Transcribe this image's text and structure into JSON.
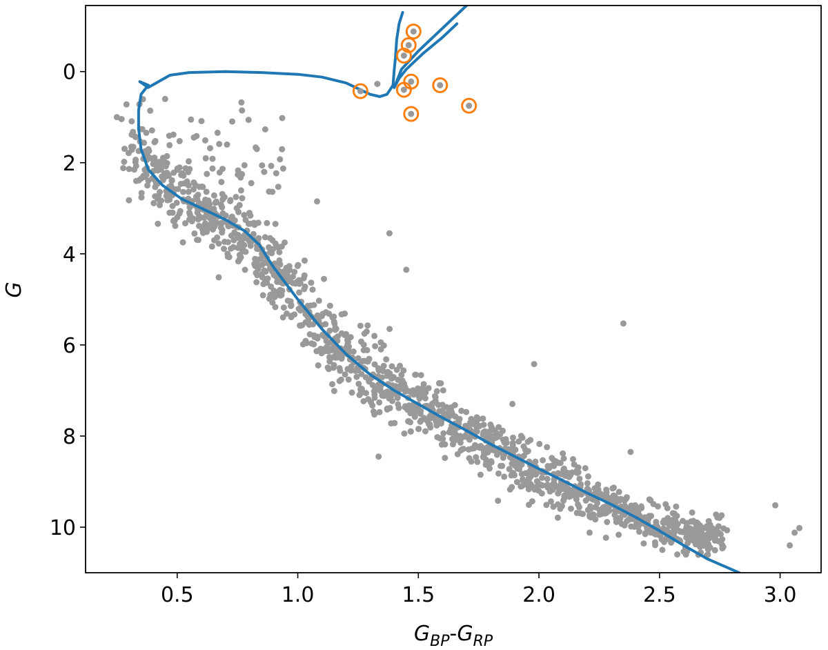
{
  "chart_data": {
    "type": "scatter",
    "title": "",
    "xlabel": "G_BP-G_RP",
    "xlabel_parts": {
      "main": "G",
      "sub1": "BP",
      "dash": "-",
      "main2": "G",
      "sub2": "RP"
    },
    "ylabel": "G",
    "xlim": [
      0.12,
      3.17
    ],
    "ylim": [
      11.0,
      -1.45
    ],
    "y_inverted": true,
    "grid": false,
    "x_ticks": [
      0.5,
      1.0,
      1.5,
      2.0,
      2.5,
      3.0
    ],
    "x_tick_labels": [
      "0.5",
      "1.0",
      "1.5",
      "2.0",
      "2.5",
      "3.0"
    ],
    "y_ticks": [
      0,
      2,
      4,
      6,
      8,
      10
    ],
    "y_tick_labels": [
      "0",
      "2",
      "4",
      "6",
      "8",
      "10"
    ],
    "colors": {
      "stars": "#999999",
      "isochrone": "#1f77b4",
      "highlight": "#ff7f0e"
    },
    "ridge": {
      "x": [
        0.3,
        0.4,
        0.5,
        0.6,
        0.7,
        0.8,
        0.9,
        1.0,
        1.1,
        1.2,
        1.3,
        1.4,
        1.5,
        1.6,
        1.7,
        1.8,
        1.9,
        2.0,
        2.1,
        2.2,
        2.3,
        2.4,
        2.5,
        2.6,
        2.7
      ],
      "y": [
        1.5,
        2.3,
        2.75,
        3.15,
        3.5,
        3.85,
        4.4,
        5.15,
        5.8,
        6.3,
        6.75,
        7.1,
        7.45,
        7.75,
        8.05,
        8.35,
        8.6,
        8.85,
        9.1,
        9.35,
        9.6,
        9.85,
        10.05,
        10.2,
        10.3
      ]
    },
    "series": [
      {
        "values": [
          {
            "x": 0.25,
            "y": 1.0
          },
          {
            "x": 0.28,
            "y": 1.98
          },
          {
            "x": 0.33,
            "y": 2.4
          },
          {
            "x": 1.33,
            "y": 0.27
          },
          {
            "x": 1.45,
            "y": 4.35
          },
          {
            "x": 1.61,
            "y": 8.48
          },
          {
            "x": 1.83,
            "y": 9.42
          },
          {
            "x": 1.98,
            "y": 6.42
          },
          {
            "x": 2.21,
            "y": 10.12
          },
          {
            "x": 2.35,
            "y": 5.53
          },
          {
            "x": 2.38,
            "y": 8.35
          },
          {
            "x": 3.06,
            "y": 10.12
          },
          {
            "x": 3.08,
            "y": 10.02
          },
          {
            "x": 3.04,
            "y": 10.4
          },
          {
            "x": 2.98,
            "y": 9.52
          },
          {
            "x": 1.08,
            "y": 2.85
          },
          {
            "x": 0.83,
            "y": 1.7
          },
          {
            "x": 1.38,
            "y": 3.55
          }
        ]
      },
      {
        "values": [
          {
            "x": 1.26,
            "y": 0.43
          },
          {
            "x": 1.44,
            "y": 0.4
          },
          {
            "x": 1.47,
            "y": 0.22
          },
          {
            "x": 1.59,
            "y": 0.3
          },
          {
            "x": 1.71,
            "y": 0.75
          },
          {
            "x": 1.47,
            "y": 0.93
          },
          {
            "x": 1.44,
            "y": -0.35
          },
          {
            "x": 1.46,
            "y": -0.58
          },
          {
            "x": 1.48,
            "y": -0.88
          }
        ]
      },
      {
        "values": [
          {
            "x": 1.435,
            "y": -1.3
          },
          {
            "x": 1.42,
            "y": -1.05
          },
          {
            "x": 1.41,
            "y": -0.7
          },
          {
            "x": 1.405,
            "y": -0.3
          },
          {
            "x": 1.4,
            "y": -0.05
          },
          {
            "x": 1.395,
            "y": 0.3
          },
          {
            "x": 1.37,
            "y": 0.5
          },
          {
            "x": 1.34,
            "y": 0.55
          },
          {
            "x": 1.3,
            "y": 0.5
          },
          {
            "x": 1.2,
            "y": 0.25
          },
          {
            "x": 1.1,
            "y": 0.12
          },
          {
            "x": 1.0,
            "y": 0.06
          },
          {
            "x": 0.85,
            "y": 0.02
          },
          {
            "x": 0.7,
            "y": 0.0
          },
          {
            "x": 0.55,
            "y": 0.02
          },
          {
            "x": 0.47,
            "y": 0.08
          },
          {
            "x": 0.43,
            "y": 0.2
          },
          {
            "x": 0.38,
            "y": 0.35
          },
          {
            "x": 0.345,
            "y": 0.22
          },
          {
            "x": 0.38,
            "y": 0.3
          },
          {
            "x": 0.35,
            "y": 0.5
          },
          {
            "x": 0.34,
            "y": 0.85
          },
          {
            "x": 0.34,
            "y": 1.25
          },
          {
            "x": 0.35,
            "y": 1.7
          },
          {
            "x": 0.38,
            "y": 2.15
          },
          {
            "x": 0.44,
            "y": 2.5
          },
          {
            "x": 0.52,
            "y": 2.8
          },
          {
            "x": 0.62,
            "y": 3.05
          },
          {
            "x": 0.7,
            "y": 3.25
          },
          {
            "x": 0.78,
            "y": 3.5
          },
          {
            "x": 0.84,
            "y": 3.8
          },
          {
            "x": 0.9,
            "y": 4.3
          },
          {
            "x": 1.0,
            "y": 5.0
          },
          {
            "x": 1.1,
            "y": 5.65
          },
          {
            "x": 1.2,
            "y": 6.2
          },
          {
            "x": 1.3,
            "y": 6.65
          },
          {
            "x": 1.4,
            "y": 7.0
          },
          {
            "x": 1.5,
            "y": 7.3
          },
          {
            "x": 1.6,
            "y": 7.6
          },
          {
            "x": 1.7,
            "y": 7.88
          },
          {
            "x": 1.8,
            "y": 8.18
          },
          {
            "x": 1.9,
            "y": 8.45
          },
          {
            "x": 2.0,
            "y": 8.72
          },
          {
            "x": 2.1,
            "y": 8.98
          },
          {
            "x": 2.2,
            "y": 9.25
          },
          {
            "x": 2.3,
            "y": 9.5
          },
          {
            "x": 2.4,
            "y": 9.78
          },
          {
            "x": 2.5,
            "y": 10.08
          },
          {
            "x": 2.6,
            "y": 10.4
          },
          {
            "x": 2.7,
            "y": 10.7
          },
          {
            "x": 2.83,
            "y": 11.0
          }
        ]
      },
      {
        "values": [
          {
            "x": 1.4,
            "y": 0.35
          },
          {
            "x": 1.43,
            "y": -0.05
          },
          {
            "x": 1.5,
            "y": -0.45
          },
          {
            "x": 1.58,
            "y": -0.85
          },
          {
            "x": 1.65,
            "y": -1.2
          },
          {
            "x": 1.71,
            "y": -1.5
          }
        ]
      },
      {
        "values": [
          {
            "x": 1.66,
            "y": -1.05
          },
          {
            "x": 1.6,
            "y": -0.75
          },
          {
            "x": 1.52,
            "y": -0.4
          },
          {
            "x": 1.45,
            "y": -0.05
          },
          {
            "x": 1.42,
            "y": 0.15
          },
          {
            "x": 1.4,
            "y": 0.35
          }
        ]
      }
    ]
  }
}
